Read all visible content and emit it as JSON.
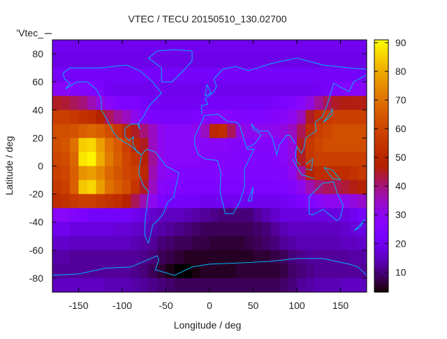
{
  "chart_data": {
    "type": "heatmap",
    "title": "VTEC / TECU 20150510_130.02700",
    "xlabel": "Longitude / deg",
    "ylabel": "Latitude / deg",
    "legend_label": "'Vtec_",
    "legend_placement": "top-left",
    "xlim": [
      -180,
      180
    ],
    "ylim": [
      -90,
      90
    ],
    "xticks": [
      -150,
      -100,
      -50,
      0,
      50,
      100,
      150
    ],
    "yticks": [
      -80,
      -60,
      -40,
      -20,
      0,
      20,
      40,
      60,
      80
    ],
    "colorbar": {
      "range": [
        3,
        91
      ],
      "ticks": [
        10,
        20,
        30,
        40,
        50,
        60,
        70,
        80,
        90
      ],
      "palette": "black-purple-red-orange-yellow"
    },
    "grid_lon_centers": [
      -175,
      -165,
      -155,
      -145,
      -135,
      -125,
      -115,
      -105,
      -95,
      -85,
      -75,
      -65,
      -55,
      -45,
      -35,
      -25,
      -15,
      -5,
      5,
      15,
      25,
      35,
      45,
      55,
      65,
      75,
      85,
      95,
      105,
      115,
      125,
      135,
      145,
      155,
      165,
      175
    ],
    "grid_lat_centers": [
      85,
      75,
      65,
      55,
      45,
      35,
      25,
      15,
      5,
      -5,
      -15,
      -25,
      -35,
      -45,
      -55,
      -65,
      -75,
      -85
    ],
    "values": [
      [
        20,
        20,
        20,
        20,
        20,
        20,
        20,
        20,
        20,
        20,
        20,
        20,
        20,
        20,
        20,
        20,
        20,
        20,
        20,
        20,
        20,
        20,
        20,
        20,
        20,
        20,
        20,
        20,
        20,
        20,
        20,
        20,
        20,
        20,
        20,
        20
      ],
      [
        19,
        19,
        19,
        19,
        19,
        19,
        19,
        19,
        19,
        19,
        19,
        19,
        19,
        19,
        19,
        19,
        19,
        19,
        19,
        19,
        19,
        19,
        19,
        19,
        19,
        19,
        19,
        19,
        19,
        19,
        19,
        19,
        19,
        19,
        19,
        19
      ],
      [
        22,
        22,
        22,
        22,
        22,
        22,
        22,
        22,
        22,
        22,
        22,
        22,
        22,
        22,
        22,
        22,
        22,
        22,
        22,
        22,
        22,
        22,
        22,
        22,
        22,
        22,
        22,
        22,
        22,
        22,
        22,
        22,
        22,
        22,
        22,
        22
      ],
      [
        28,
        28,
        27,
        26,
        25,
        23,
        21,
        20,
        20,
        20,
        20,
        20,
        20,
        20,
        20,
        20,
        20,
        20,
        20,
        20,
        20,
        20,
        20,
        20,
        20,
        20,
        20,
        20,
        20,
        20,
        21,
        22,
        24,
        26,
        27,
        28
      ],
      [
        45,
        44,
        42,
        40,
        36,
        32,
        28,
        25,
        24,
        24,
        22,
        21,
        21,
        21,
        21,
        21,
        21,
        21,
        22,
        22,
        22,
        22,
        22,
        22,
        22,
        23,
        24,
        26,
        28,
        32,
        38,
        42,
        45,
        46,
        46,
        46
      ],
      [
        58,
        58,
        56,
        54,
        52,
        48,
        42,
        38,
        35,
        30,
        26,
        24,
        23,
        23,
        23,
        23,
        24,
        26,
        28,
        28,
        27,
        26,
        25,
        25,
        26,
        27,
        28,
        30,
        35,
        45,
        52,
        56,
        58,
        58,
        58,
        58
      ],
      [
        62,
        62,
        63,
        66,
        68,
        66,
        62,
        56,
        50,
        45,
        40,
        35,
        30,
        28,
        28,
        28,
        30,
        35,
        50,
        52,
        42,
        32,
        30,
        30,
        30,
        30,
        32,
        35,
        42,
        52,
        58,
        60,
        62,
        62,
        62,
        62
      ],
      [
        62,
        64,
        70,
        85,
        86,
        78,
        70,
        65,
        58,
        50,
        45,
        35,
        30,
        28,
        28,
        28,
        28,
        28,
        28,
        28,
        27,
        27,
        27,
        27,
        27,
        27,
        28,
        32,
        45,
        56,
        60,
        62,
        62,
        62,
        62,
        62
      ],
      [
        60,
        62,
        68,
        88,
        90,
        80,
        72,
        66,
        60,
        55,
        48,
        38,
        30,
        28,
        28,
        28,
        28,
        27,
        27,
        27,
        27,
        26,
        26,
        26,
        26,
        26,
        28,
        32,
        45,
        55,
        58,
        58,
        58,
        58,
        58,
        58
      ],
      [
        58,
        60,
        66,
        76,
        78,
        74,
        68,
        64,
        60,
        58,
        50,
        36,
        30,
        28,
        26,
        26,
        26,
        26,
        26,
        26,
        26,
        26,
        26,
        26,
        26,
        26,
        27,
        30,
        38,
        48,
        52,
        52,
        52,
        52,
        54,
        56
      ],
      [
        56,
        58,
        66,
        84,
        86,
        78,
        70,
        66,
        62,
        55,
        45,
        35,
        28,
        26,
        25,
        24,
        24,
        24,
        24,
        24,
        24,
        24,
        24,
        24,
        24,
        24,
        25,
        27,
        30,
        36,
        40,
        42,
        42,
        44,
        46,
        48
      ],
      [
        52,
        54,
        56,
        58,
        58,
        56,
        54,
        52,
        48,
        42,
        36,
        30,
        24,
        22,
        22,
        22,
        22,
        20,
        20,
        20,
        20,
        20,
        20,
        20,
        20,
        20,
        21,
        22,
        24,
        26,
        28,
        30,
        30,
        30,
        32,
        34
      ],
      [
        28,
        28,
        26,
        24,
        22,
        22,
        22,
        22,
        22,
        20,
        18,
        16,
        15,
        15,
        15,
        14,
        13,
        12,
        11,
        10,
        10,
        10,
        10,
        12,
        14,
        16,
        18,
        18,
        18,
        18,
        18,
        18,
        18,
        18,
        20,
        22
      ],
      [
        20,
        20,
        18,
        18,
        18,
        18,
        18,
        17,
        17,
        16,
        15,
        14,
        13,
        12,
        11,
        10,
        9,
        8,
        8,
        8,
        8,
        8,
        8,
        9,
        10,
        12,
        14,
        15,
        15,
        15,
        15,
        15,
        15,
        16,
        17,
        18
      ],
      [
        16,
        16,
        15,
        15,
        15,
        15,
        15,
        15,
        15,
        14,
        13,
        12,
        10,
        9,
        8,
        8,
        7,
        7,
        6,
        6,
        6,
        6,
        7,
        8,
        9,
        10,
        12,
        13,
        14,
        14,
        14,
        14,
        14,
        15,
        15,
        16
      ],
      [
        13,
        13,
        12,
        12,
        12,
        12,
        12,
        12,
        12,
        12,
        11,
        10,
        8,
        7,
        6,
        5,
        5,
        5,
        5,
        5,
        5,
        5,
        5,
        6,
        6,
        7,
        8,
        10,
        11,
        12,
        12,
        12,
        12,
        12,
        13,
        13
      ],
      [
        12,
        12,
        12,
        12,
        12,
        12,
        12,
        12,
        12,
        11,
        10,
        8,
        6,
        4,
        3,
        3,
        4,
        5,
        5,
        5,
        5,
        6,
        6,
        6,
        6,
        6,
        7,
        9,
        10,
        11,
        12,
        12,
        12,
        12,
        12,
        12
      ],
      [
        15,
        15,
        15,
        15,
        15,
        15,
        14,
        14,
        14,
        13,
        12,
        11,
        10,
        9,
        8,
        8,
        8,
        8,
        8,
        8,
        8,
        8,
        8,
        8,
        8,
        8,
        9,
        10,
        12,
        13,
        14,
        14,
        14,
        15,
        15,
        15
      ]
    ],
    "coastline_color": "#00b4ff"
  }
}
